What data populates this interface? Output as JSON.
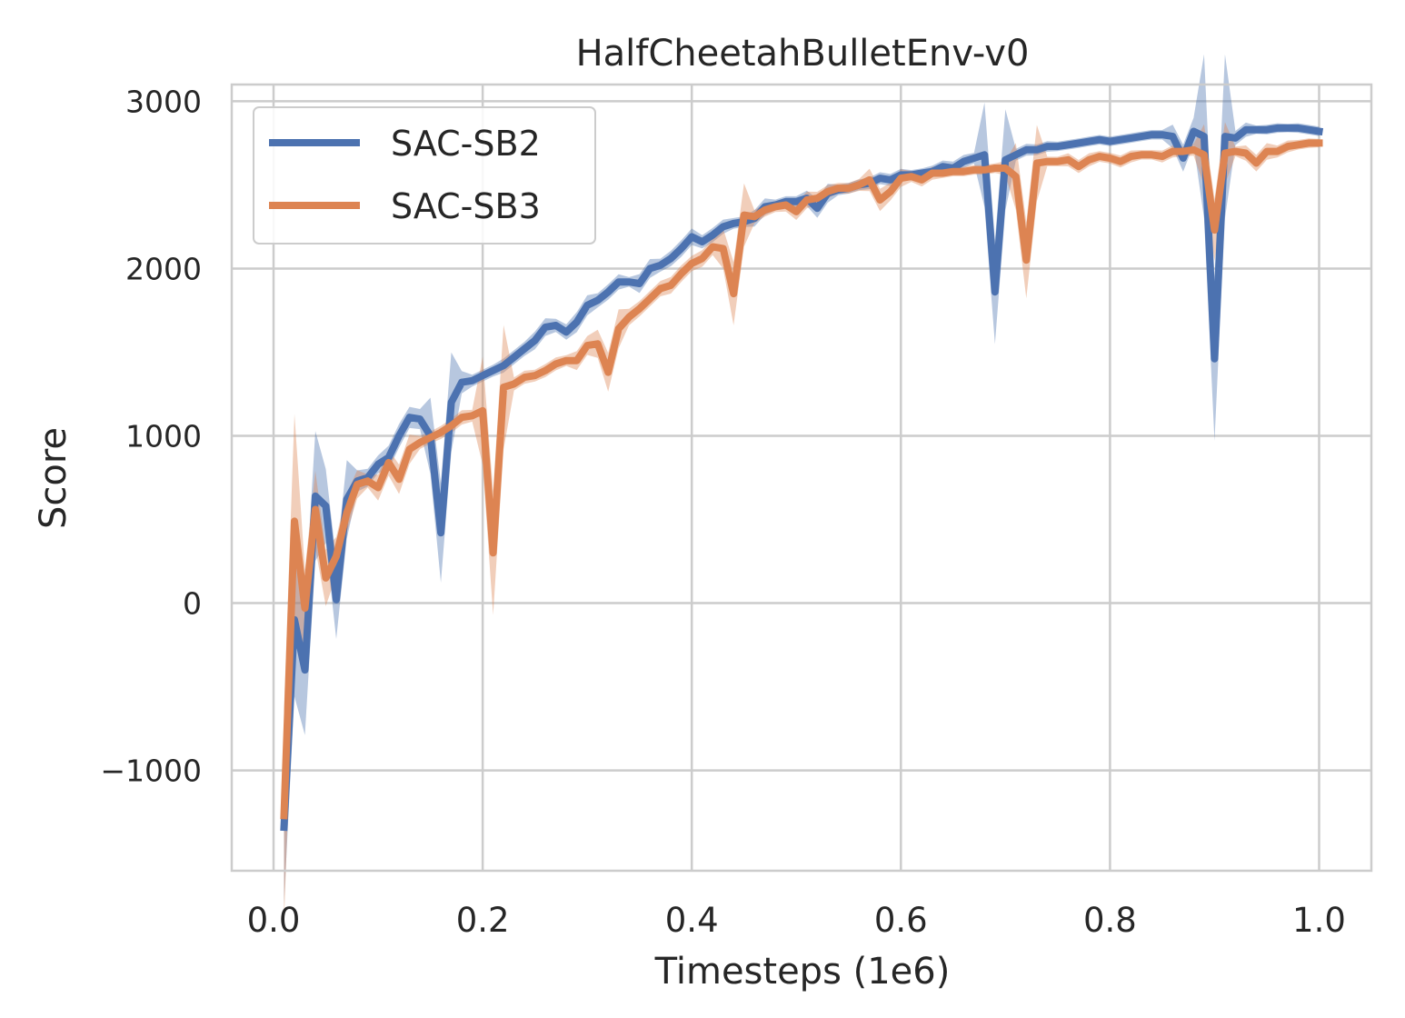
{
  "chart_data": {
    "type": "line",
    "title": "HalfCheetahBulletEnv-v0",
    "xlabel": "Timesteps (1e6)",
    "ylabel": "Score",
    "xlim": [
      -0.04,
      1.05
    ],
    "ylim": [
      -1600,
      3100
    ],
    "xticks": [
      0.0,
      0.2,
      0.4,
      0.6,
      0.8,
      1.0
    ],
    "xtick_labels": [
      "0.0",
      "0.2",
      "0.4",
      "0.6",
      "0.8",
      "1.0"
    ],
    "yticks": [
      -1000,
      0,
      1000,
      2000,
      3000
    ],
    "ytick_labels": [
      "−1000",
      "0",
      "1000",
      "2000",
      "3000"
    ],
    "grid": true,
    "legend_position": "top-left",
    "series": [
      {
        "name": "SAC-SB2",
        "color": "#4c72b0",
        "points": [
          [
            0.01,
            -1340
          ],
          [
            0.02,
            -100
          ],
          [
            0.03,
            -400
          ],
          [
            0.04,
            640
          ],
          [
            0.05,
            580
          ],
          [
            0.06,
            20
          ],
          [
            0.07,
            620
          ],
          [
            0.08,
            730
          ],
          [
            0.09,
            750
          ],
          [
            0.1,
            830
          ],
          [
            0.11,
            870
          ],
          [
            0.12,
            1000
          ],
          [
            0.13,
            1110
          ],
          [
            0.14,
            1100
          ],
          [
            0.15,
            1000
          ],
          [
            0.16,
            420
          ],
          [
            0.17,
            1200
          ],
          [
            0.18,
            1320
          ],
          [
            0.19,
            1330
          ],
          [
            0.2,
            1360
          ],
          [
            0.21,
            1390
          ],
          [
            0.22,
            1420
          ],
          [
            0.23,
            1470
          ],
          [
            0.24,
            1520
          ],
          [
            0.25,
            1570
          ],
          [
            0.26,
            1650
          ],
          [
            0.27,
            1660
          ],
          [
            0.28,
            1620
          ],
          [
            0.29,
            1680
          ],
          [
            0.3,
            1780
          ],
          [
            0.31,
            1810
          ],
          [
            0.32,
            1860
          ],
          [
            0.33,
            1920
          ],
          [
            0.34,
            1920
          ],
          [
            0.35,
            1910
          ],
          [
            0.36,
            2000
          ],
          [
            0.37,
            2020
          ],
          [
            0.38,
            2060
          ],
          [
            0.39,
            2120
          ],
          [
            0.4,
            2190
          ],
          [
            0.41,
            2160
          ],
          [
            0.42,
            2200
          ],
          [
            0.43,
            2250
          ],
          [
            0.44,
            2270
          ],
          [
            0.45,
            2280
          ],
          [
            0.46,
            2300
          ],
          [
            0.47,
            2370
          ],
          [
            0.48,
            2380
          ],
          [
            0.49,
            2400
          ],
          [
            0.5,
            2400
          ],
          [
            0.51,
            2420
          ],
          [
            0.52,
            2360
          ],
          [
            0.53,
            2450
          ],
          [
            0.54,
            2470
          ],
          [
            0.55,
            2480
          ],
          [
            0.56,
            2500
          ],
          [
            0.57,
            2510
          ],
          [
            0.58,
            2540
          ],
          [
            0.59,
            2530
          ],
          [
            0.6,
            2560
          ],
          [
            0.61,
            2560
          ],
          [
            0.62,
            2570
          ],
          [
            0.63,
            2580
          ],
          [
            0.64,
            2610
          ],
          [
            0.65,
            2600
          ],
          [
            0.66,
            2640
          ],
          [
            0.67,
            2660
          ],
          [
            0.68,
            2680
          ],
          [
            0.69,
            1860
          ],
          [
            0.7,
            2650
          ],
          [
            0.71,
            2680
          ],
          [
            0.72,
            2710
          ],
          [
            0.73,
            2710
          ],
          [
            0.74,
            2730
          ],
          [
            0.75,
            2730
          ],
          [
            0.76,
            2740
          ],
          [
            0.77,
            2750
          ],
          [
            0.78,
            2760
          ],
          [
            0.79,
            2770
          ],
          [
            0.8,
            2760
          ],
          [
            0.81,
            2770
          ],
          [
            0.82,
            2780
          ],
          [
            0.83,
            2790
          ],
          [
            0.84,
            2800
          ],
          [
            0.85,
            2800
          ],
          [
            0.86,
            2790
          ],
          [
            0.87,
            2660
          ],
          [
            0.88,
            2820
          ],
          [
            0.89,
            2790
          ],
          [
            0.9,
            1460
          ],
          [
            0.91,
            2790
          ],
          [
            0.92,
            2780
          ],
          [
            0.93,
            2830
          ],
          [
            0.94,
            2830
          ],
          [
            0.95,
            2830
          ],
          [
            0.96,
            2840
          ],
          [
            0.97,
            2840
          ],
          [
            0.98,
            2840
          ],
          [
            0.99,
            2830
          ],
          [
            1.0,
            2820
          ]
        ]
      },
      {
        "name": "SAC-SB3",
        "color": "#dd8452",
        "points": [
          [
            0.01,
            -1270
          ],
          [
            0.02,
            490
          ],
          [
            0.03,
            -30
          ],
          [
            0.04,
            560
          ],
          [
            0.05,
            150
          ],
          [
            0.06,
            280
          ],
          [
            0.07,
            540
          ],
          [
            0.08,
            710
          ],
          [
            0.09,
            730
          ],
          [
            0.1,
            690
          ],
          [
            0.11,
            840
          ],
          [
            0.12,
            740
          ],
          [
            0.13,
            920
          ],
          [
            0.14,
            960
          ],
          [
            0.15,
            990
          ],
          [
            0.16,
            1020
          ],
          [
            0.17,
            1060
          ],
          [
            0.18,
            1110
          ],
          [
            0.19,
            1120
          ],
          [
            0.2,
            1150
          ],
          [
            0.21,
            300
          ],
          [
            0.22,
            1290
          ],
          [
            0.23,
            1310
          ],
          [
            0.24,
            1350
          ],
          [
            0.25,
            1360
          ],
          [
            0.26,
            1390
          ],
          [
            0.27,
            1430
          ],
          [
            0.28,
            1450
          ],
          [
            0.29,
            1450
          ],
          [
            0.3,
            1540
          ],
          [
            0.31,
            1550
          ],
          [
            0.32,
            1380
          ],
          [
            0.33,
            1640
          ],
          [
            0.34,
            1710
          ],
          [
            0.35,
            1760
          ],
          [
            0.36,
            1820
          ],
          [
            0.37,
            1880
          ],
          [
            0.38,
            1900
          ],
          [
            0.39,
            1970
          ],
          [
            0.4,
            2030
          ],
          [
            0.41,
            2060
          ],
          [
            0.42,
            2130
          ],
          [
            0.43,
            2120
          ],
          [
            0.44,
            1850
          ],
          [
            0.45,
            2320
          ],
          [
            0.46,
            2310
          ],
          [
            0.47,
            2350
          ],
          [
            0.48,
            2370
          ],
          [
            0.49,
            2380
          ],
          [
            0.5,
            2340
          ],
          [
            0.51,
            2410
          ],
          [
            0.52,
            2420
          ],
          [
            0.53,
            2460
          ],
          [
            0.54,
            2480
          ],
          [
            0.55,
            2480
          ],
          [
            0.56,
            2500
          ],
          [
            0.57,
            2530
          ],
          [
            0.58,
            2410
          ],
          [
            0.59,
            2460
          ],
          [
            0.6,
            2540
          ],
          [
            0.61,
            2550
          ],
          [
            0.62,
            2530
          ],
          [
            0.63,
            2570
          ],
          [
            0.64,
            2570
          ],
          [
            0.65,
            2580
          ],
          [
            0.66,
            2580
          ],
          [
            0.67,
            2590
          ],
          [
            0.68,
            2590
          ],
          [
            0.69,
            2600
          ],
          [
            0.7,
            2600
          ],
          [
            0.71,
            2550
          ],
          [
            0.72,
            2050
          ],
          [
            0.73,
            2630
          ],
          [
            0.74,
            2640
          ],
          [
            0.75,
            2640
          ],
          [
            0.76,
            2650
          ],
          [
            0.77,
            2610
          ],
          [
            0.78,
            2650
          ],
          [
            0.79,
            2670
          ],
          [
            0.8,
            2660
          ],
          [
            0.81,
            2640
          ],
          [
            0.82,
            2670
          ],
          [
            0.83,
            2680
          ],
          [
            0.84,
            2680
          ],
          [
            0.85,
            2670
          ],
          [
            0.86,
            2700
          ],
          [
            0.87,
            2700
          ],
          [
            0.88,
            2710
          ],
          [
            0.89,
            2680
          ],
          [
            0.9,
            2230
          ],
          [
            0.91,
            2690
          ],
          [
            0.92,
            2700
          ],
          [
            0.93,
            2690
          ],
          [
            0.94,
            2630
          ],
          [
            0.95,
            2700
          ],
          [
            0.96,
            2700
          ],
          [
            0.97,
            2730
          ],
          [
            0.98,
            2740
          ],
          [
            0.99,
            2750
          ],
          [
            1.0,
            2750
          ]
        ]
      }
    ]
  }
}
